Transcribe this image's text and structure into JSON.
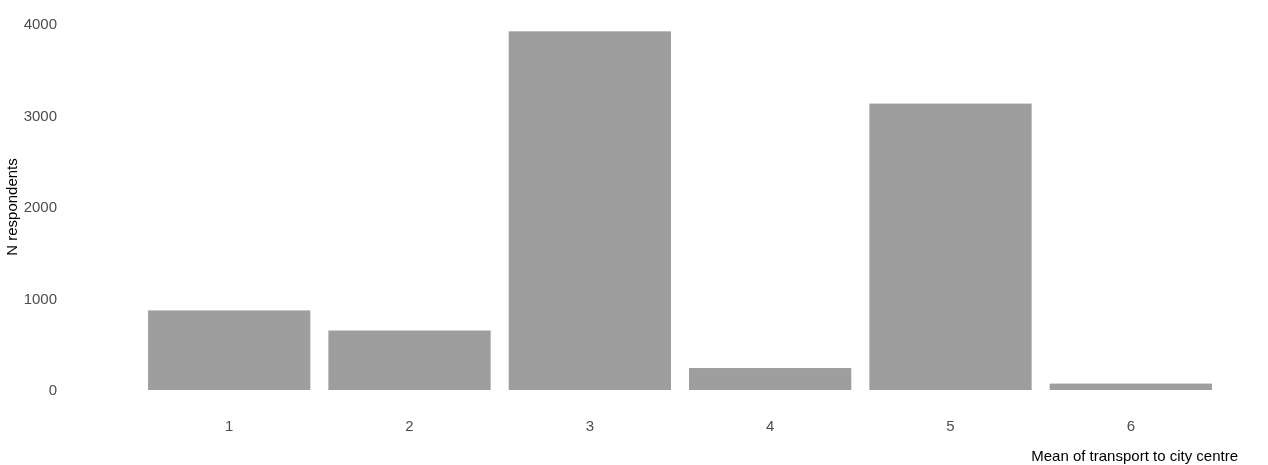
{
  "chart_data": {
    "type": "bar",
    "xlabel": "Mean of transport to city centre",
    "ylabel": "N respondents",
    "categories": [
      "1",
      "2",
      "3",
      "4",
      "5",
      "6"
    ],
    "values": [
      870,
      650,
      3920,
      240,
      3130,
      70
    ],
    "color": "#9e9e9e",
    "ylim": [
      0,
      4000
    ],
    "yticks": [
      0,
      1000,
      2000,
      3000,
      4000
    ],
    "grid": false
  }
}
